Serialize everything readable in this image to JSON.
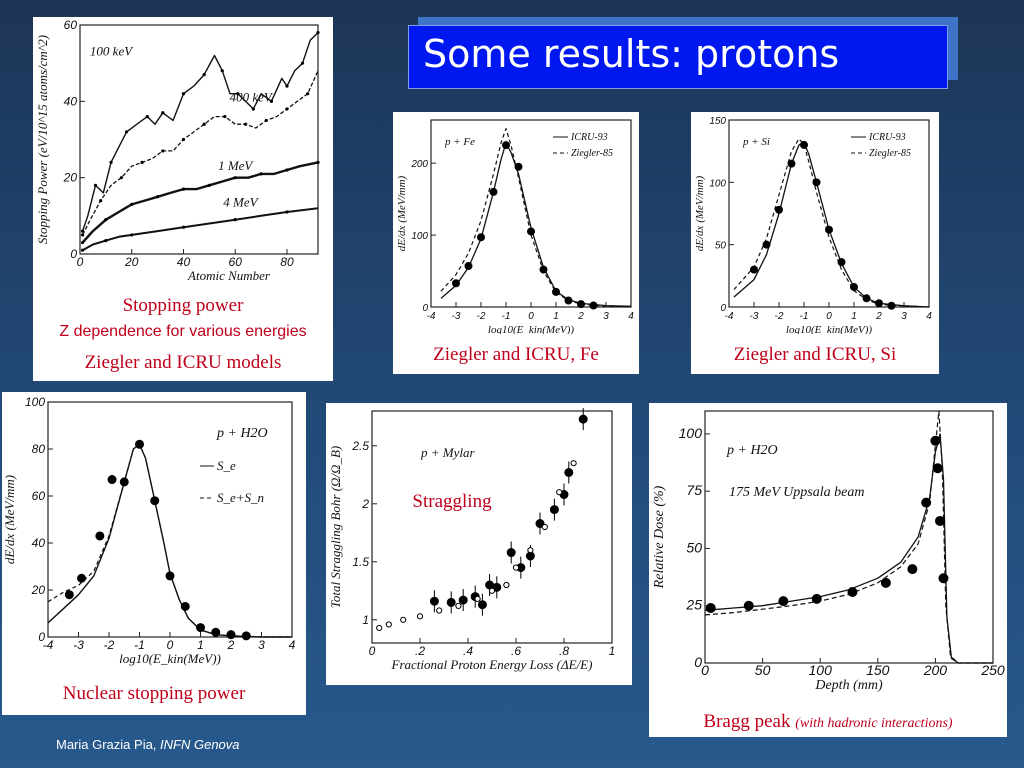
{
  "slide": {
    "title": "Some results: protons",
    "footer_author": "Maria Grazia Pia,",
    "footer_org": "INFN Genova"
  },
  "captions": {
    "p1_line1": "Stopping power",
    "p1_line2": "Z dependence for various energies",
    "p1_line3": "Ziegler and ICRU models",
    "p2": "Ziegler and ICRU, Fe",
    "p3": "Ziegler and ICRU, Si",
    "p4": "Nuclear stopping power",
    "p5": "Straggling",
    "p6_main": "Bragg peak",
    "p6_sub": "(with hadronic interactions)"
  },
  "colors": {
    "caption": "#c0001a",
    "title_bg": "#0018f0"
  },
  "chart_data": [
    {
      "id": "z-dependence",
      "type": "line",
      "xlabel": "Atomic Number",
      "ylabel": "Stopping Power (eV/10^15 atoms/cm^2)",
      "xlim": [
        0,
        92
      ],
      "ylim": [
        0,
        60
      ],
      "xticks": [
        0,
        20,
        40,
        60,
        80
      ],
      "yticks": [
        0,
        20,
        40,
        60
      ],
      "series": [
        {
          "name": "100 keV",
          "x": [
            1,
            3,
            6,
            9,
            12,
            15,
            18,
            22,
            26,
            29,
            32,
            36,
            40,
            44,
            48,
            52,
            55,
            58,
            61,
            64,
            67,
            70,
            74,
            78,
            80,
            83,
            86,
            89,
            92
          ],
          "y": [
            6,
            10,
            18,
            16,
            24,
            28,
            32,
            34,
            36,
            34,
            37,
            35,
            42,
            44,
            47,
            52,
            48,
            42,
            42,
            40,
            38,
            42,
            40,
            46,
            44,
            48,
            50,
            56,
            58
          ]
        },
        {
          "name": "400 keV",
          "x": [
            1,
            4,
            8,
            12,
            16,
            20,
            24,
            28,
            32,
            36,
            40,
            44,
            48,
            52,
            56,
            60,
            64,
            68,
            72,
            76,
            80,
            84,
            88,
            92
          ],
          "y": [
            5,
            9,
            14,
            18,
            20,
            23,
            24,
            25,
            27,
            27,
            30,
            32,
            34,
            36,
            36,
            34,
            34,
            33,
            35,
            36,
            38,
            40,
            42,
            48
          ]
        },
        {
          "name": "1 MeV",
          "x": [
            1,
            5,
            10,
            15,
            20,
            25,
            30,
            35,
            40,
            45,
            50,
            55,
            60,
            65,
            70,
            75,
            80,
            85,
            92
          ],
          "y": [
            3,
            6,
            9,
            11,
            13,
            14,
            15,
            16,
            17,
            17,
            18,
            19,
            20,
            20,
            21,
            21,
            22,
            23,
            24
          ]
        },
        {
          "name": "4 MeV",
          "x": [
            1,
            5,
            10,
            15,
            20,
            30,
            40,
            50,
            60,
            70,
            80,
            92
          ],
          "y": [
            1,
            2.5,
            3.5,
            4.5,
            5,
            6,
            7,
            8,
            9,
            10,
            11,
            12
          ]
        }
      ]
    },
    {
      "id": "p-fe",
      "type": "line",
      "annotation": "p + Fe",
      "xlabel": "log10(E_kin(MeV))",
      "ylabel": "dE/dx (MeV/mm)",
      "xlim": [
        -4,
        4
      ],
      "ylim": [
        0,
        260
      ],
      "xticks": [
        -4,
        -3,
        -2,
        -1,
        0,
        1,
        2,
        3,
        4
      ],
      "yticks": [
        0,
        100,
        200
      ],
      "series": [
        {
          "name": "ICRU-93",
          "x": [
            -3.6,
            -3,
            -2.5,
            -2,
            -1.5,
            -1.2,
            -1,
            -0.8,
            -0.5,
            -0.2,
            0,
            0.5,
            1,
            1.5,
            2,
            3,
            4
          ],
          "y": [
            12,
            30,
            55,
            95,
            160,
            205,
            228,
            215,
            185,
            140,
            110,
            55,
            22,
            10,
            5,
            2,
            1
          ]
        },
        {
          "name": "Ziegler-85",
          "x": [
            -3.6,
            -3,
            -2.5,
            -2,
            -1.5,
            -1.2,
            -1,
            -0.8,
            -0.5,
            -0.2,
            0,
            0.5,
            1,
            1.5,
            2,
            3,
            4
          ],
          "y": [
            22,
            45,
            75,
            120,
            185,
            228,
            248,
            225,
            180,
            132,
            100,
            50,
            20,
            9,
            4,
            1,
            0
          ]
        },
        {
          "name": "points",
          "x": [
            -3,
            -2.5,
            -2,
            -1.5,
            -1,
            -0.5,
            0,
            0.5,
            1,
            1.5,
            2,
            2.5
          ],
          "y": [
            33,
            57,
            97,
            160,
            225,
            195,
            105,
            52,
            21,
            9,
            4,
            2
          ]
        }
      ]
    },
    {
      "id": "p-si",
      "type": "line",
      "annotation": "p + Si",
      "xlabel": "log10(E_kin(MeV))",
      "ylabel": "dE/dx (MeV/mm)",
      "xlim": [
        -4,
        4
      ],
      "ylim": [
        0,
        150
      ],
      "xticks": [
        -4,
        -3,
        -2,
        -1,
        0,
        1,
        2,
        3,
        4
      ],
      "yticks": [
        0,
        50,
        100,
        150
      ],
      "series": [
        {
          "name": "ICRU-93",
          "x": [
            -3.8,
            -3,
            -2.5,
            -2,
            -1.5,
            -1.2,
            -1,
            -0.8,
            -0.5,
            0,
            0.5,
            1,
            1.5,
            2,
            3,
            4
          ],
          "y": [
            8,
            22,
            42,
            75,
            115,
            130,
            132,
            122,
            100,
            62,
            35,
            16,
            7,
            3,
            1,
            0
          ]
        },
        {
          "name": "Ziegler-85",
          "x": [
            -3.8,
            -3,
            -2.5,
            -2,
            -1.5,
            -1.2,
            -1,
            -0.8,
            -0.5,
            0,
            0.5,
            1,
            1.5,
            2,
            3,
            4
          ],
          "y": [
            14,
            32,
            55,
            90,
            125,
            135,
            130,
            116,
            92,
            56,
            30,
            13,
            6,
            2,
            1,
            0
          ]
        },
        {
          "name": "points",
          "x": [
            -3,
            -2.5,
            -2,
            -1.5,
            -1,
            -0.5,
            0,
            0.5,
            1,
            1.5,
            2,
            2.5
          ],
          "y": [
            30,
            50,
            78,
            115,
            130,
            100,
            62,
            36,
            16,
            7,
            3,
            1
          ]
        }
      ]
    },
    {
      "id": "h2o-stopping",
      "type": "line",
      "annotation": "p + H2O",
      "xlabel": "log10(E_kin(MeV))",
      "ylabel": "dE/dx (MeV/mm)",
      "xlim": [
        -4,
        4
      ],
      "ylim": [
        0,
        100
      ],
      "xticks": [
        -4,
        -3,
        -2,
        -1,
        0,
        1,
        2,
        3,
        4
      ],
      "yticks": [
        0,
        20,
        40,
        60,
        80,
        100
      ],
      "series": [
        {
          "name": "S_e",
          "x": [
            -4,
            -3.5,
            -3,
            -2.5,
            -2,
            -1.5,
            -1.2,
            -1,
            -0.8,
            -0.5,
            -0.2,
            0,
            0.3,
            0.6,
            1,
            1.5,
            2,
            3,
            4
          ],
          "y": [
            6,
            12,
            18,
            26,
            42,
            66,
            80,
            82,
            76,
            58,
            40,
            27,
            16,
            8,
            3,
            1,
            0.5,
            0,
            0
          ]
        },
        {
          "name": "S_e+S_n",
          "x": [
            -4,
            -3.5,
            -3,
            -2.5,
            -2,
            -1.5,
            -1.2,
            -1,
            -0.8,
            -0.5,
            -0.2,
            0,
            0.3,
            0.6,
            1,
            1.5,
            2,
            3,
            4
          ],
          "y": [
            15,
            19,
            22,
            28,
            43,
            66,
            80,
            82,
            76,
            58,
            40,
            27,
            16,
            8,
            3,
            1,
            0.5,
            0,
            0
          ]
        },
        {
          "name": "points",
          "x": [
            -3.3,
            -2.9,
            -2.3,
            -1.9,
            -1.5,
            -1,
            -0.5,
            0,
            0.5,
            1,
            1.5,
            2,
            2.5
          ],
          "y": [
            18,
            25,
            43,
            67,
            66,
            82,
            58,
            26,
            13,
            4,
            2,
            1,
            0.5
          ]
        }
      ]
    },
    {
      "id": "straggling",
      "type": "scatter",
      "annotation": "p + Mylar",
      "xlabel": "Fractional Proton Energy Loss (ΔE/E)",
      "ylabel": "Total Straggling Bohr (Ω/Ω_B)",
      "xlim": [
        0,
        1
      ],
      "ylim": [
        0.8,
        2.8
      ],
      "xticks": [
        0,
        0.2,
        0.4,
        0.6,
        0.8,
        1
      ],
      "xtick_labels": [
        "0",
        ".2",
        ".4",
        ".6",
        ".8",
        "1"
      ],
      "yticks": [
        1,
        1.5,
        2,
        2.5
      ],
      "ytick_labels": [
        "1",
        "1.5",
        "2",
        "2.5"
      ],
      "series": [
        {
          "name": "filled",
          "x": [
            0.26,
            0.33,
            0.38,
            0.43,
            0.46,
            0.49,
            0.52,
            0.58,
            0.62,
            0.66,
            0.7,
            0.76,
            0.8,
            0.82,
            0.88
          ],
          "y": [
            1.16,
            1.15,
            1.17,
            1.2,
            1.13,
            1.3,
            1.28,
            1.58,
            1.45,
            1.55,
            1.83,
            1.95,
            2.08,
            2.27,
            2.73
          ]
        },
        {
          "name": "open",
          "x": [
            0.03,
            0.07,
            0.13,
            0.2,
            0.28,
            0.36,
            0.44,
            0.5,
            0.56,
            0.6,
            0.66,
            0.72,
            0.78,
            0.84
          ],
          "y": [
            0.93,
            0.96,
            1.0,
            1.03,
            1.08,
            1.12,
            1.18,
            1.25,
            1.3,
            1.45,
            1.6,
            1.8,
            2.1,
            2.35
          ]
        }
      ]
    },
    {
      "id": "bragg-peak",
      "type": "line",
      "annotation_1": "p + H2O",
      "annotation_2": "175 MeV Uppsala beam",
      "xlabel": "Depth (mm)",
      "ylabel": "Relative Dose (%)",
      "xlim": [
        0,
        250
      ],
      "ylim": [
        0,
        110
      ],
      "xticks": [
        0,
        50,
        100,
        150,
        200,
        250
      ],
      "yticks": [
        0,
        25,
        50,
        75,
        100
      ],
      "series": [
        {
          "name": "solid",
          "x": [
            0,
            25,
            50,
            75,
            100,
            125,
            150,
            170,
            185,
            195,
            200,
            204,
            207,
            210,
            214,
            220,
            250
          ],
          "y": [
            23,
            24,
            25,
            27,
            29,
            32,
            37,
            44,
            55,
            72,
            92,
            100,
            80,
            20,
            2,
            0,
            0
          ]
        },
        {
          "name": "dashed",
          "x": [
            0,
            25,
            50,
            75,
            100,
            125,
            150,
            170,
            185,
            195,
            200,
            203,
            206,
            209,
            213,
            220,
            250
          ],
          "y": [
            21,
            22,
            23.5,
            25,
            27,
            30,
            35,
            42,
            52,
            70,
            95,
            110,
            85,
            25,
            3,
            0,
            0
          ]
        },
        {
          "name": "points",
          "x": [
            5,
            38,
            68,
            97,
            128,
            157,
            180,
            192,
            200,
            202,
            204,
            207
          ],
          "y": [
            24,
            25,
            27,
            28,
            31,
            35,
            41,
            70,
            97,
            85,
            62,
            37
          ]
        }
      ]
    }
  ]
}
